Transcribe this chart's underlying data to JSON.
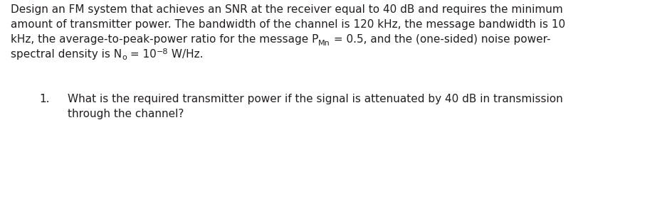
{
  "background_color": "#ffffff",
  "figsize": [
    9.44,
    2.83
  ],
  "dpi": 100,
  "line1": "Design an FM system that achieves an SNR at the receiver equal to 40 dB and requires the minimum",
  "line2": "amount of transmitter power. The bandwidth of the channel is 120 kHz, the message bandwidth is 10",
  "line3_a": "kHz, the average-to-peak-power ratio for the message P",
  "line3_sub": "Mn",
  "line3_b": " = 0.5, and the (one-sided) noise power-",
  "line4_a": "spectral density is N",
  "line4_sub": "o",
  "line4_b": " = 10",
  "line4_sup": "−8",
  "line4_c": " W/Hz.",
  "q_number": "1.",
  "q_line1": "What is the required transmitter power if the signal is attenuated by 40 dB in transmission",
  "q_line2": "through the channel?",
  "font_size": 11.0,
  "sub_sup_font_size": 8.0,
  "text_color": "#231f20",
  "font_family": "DejaVu Sans"
}
